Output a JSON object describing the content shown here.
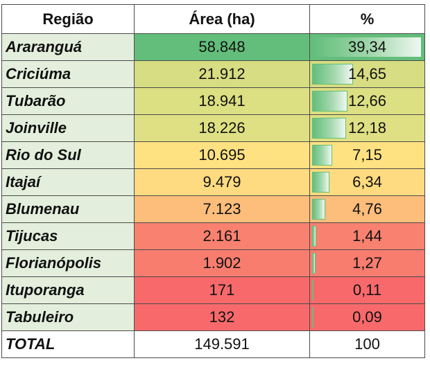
{
  "headers": {
    "regiao": "Região",
    "area": "Área (ha)",
    "pct": "%"
  },
  "rows": [
    {
      "region": "Araranguá",
      "area": "58.848",
      "pct": "39,34",
      "pct_value": 39.34,
      "color": "#63be7b"
    },
    {
      "region": "Criciúma",
      "area": "21.912",
      "pct": "14,65",
      "pct_value": 14.65,
      "color": "#d6dd82"
    },
    {
      "region": "Tubarão",
      "area": "18.941",
      "pct": "12,66",
      "pct_value": 12.66,
      "color": "#dcdf82"
    },
    {
      "region": "Joinville",
      "area": "18.226",
      "pct": "12,18",
      "pct_value": 12.18,
      "color": "#dfe083"
    },
    {
      "region": "Rio do Sul",
      "area": "10.695",
      "pct": "7,15",
      "pct_value": 7.15,
      "color": "#fee282"
    },
    {
      "region": "Itajaí",
      "area": "9.479",
      "pct": "6,34",
      "pct_value": 6.34,
      "color": "#fedb80"
    },
    {
      "region": "Blumenau",
      "area": "7.123",
      "pct": "4,76",
      "pct_value": 4.76,
      "color": "#fdbd7b"
    },
    {
      "region": "Tijucas",
      "area": "2.161",
      "pct": "1,44",
      "pct_value": 1.44,
      "color": "#f98170"
    },
    {
      "region": "Florianópolis",
      "area": "1.902",
      "pct": "1,27",
      "pct_value": 1.27,
      "color": "#f97d6f"
    },
    {
      "region": "Ituporanga",
      "area": "171",
      "pct": "0,11",
      "pct_value": 0.11,
      "color": "#f8696b"
    },
    {
      "region": "Tabuleiro",
      "area": "132",
      "pct": "0,09",
      "pct_value": 0.09,
      "color": "#f8696b"
    }
  ],
  "total": {
    "label": "TOTAL",
    "area": "149.591",
    "pct": "100"
  },
  "bar_max_pct": 39.34
}
